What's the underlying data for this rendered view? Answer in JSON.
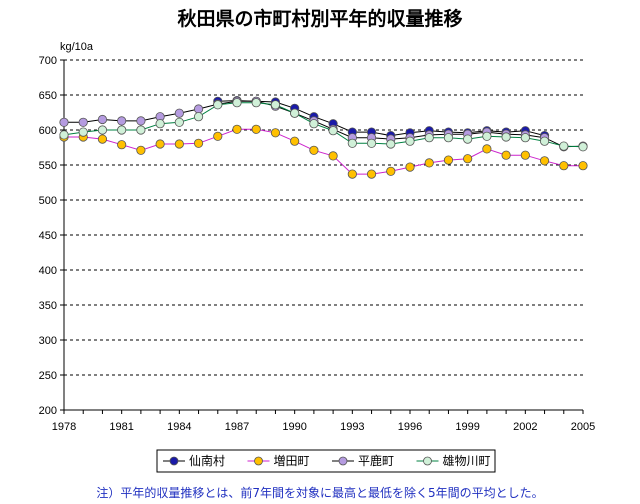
{
  "chart_data": {
    "type": "line",
    "title": "秋田県の市町村別平年的収量推移",
    "ylabel": "kg/10a",
    "xlabel": "",
    "ylim": [
      200,
      700
    ],
    "yticks": [
      200,
      250,
      300,
      350,
      400,
      450,
      500,
      550,
      600,
      650,
      700
    ],
    "xlim": [
      1978,
      2005
    ],
    "xticks": [
      1978,
      1981,
      1984,
      1987,
      1990,
      1993,
      1996,
      1999,
      2002,
      2005
    ],
    "grid": "horizontal-dashed",
    "legend_position": "bottom",
    "x": [
      1978,
      1979,
      1980,
      1981,
      1982,
      1983,
      1984,
      1985,
      1986,
      1987,
      1988,
      1989,
      1990,
      1991,
      1992,
      1993,
      1994,
      1995,
      1996,
      1997,
      1998,
      1999,
      2000,
      2001,
      2002,
      2003,
      2004,
      2005
    ],
    "series": [
      {
        "name": "仙南村",
        "line_color": "#000000",
        "marker_color": "#1a1aa8",
        "values": [
          null,
          null,
          null,
          null,
          null,
          null,
          null,
          null,
          641,
          642,
          641,
          640,
          631,
          619,
          609,
          597,
          597,
          592,
          596,
          599,
          597,
          596,
          599,
          597,
          599,
          592,
          null,
          null
        ]
      },
      {
        "name": "増田町",
        "line_color": "#cc22cc",
        "marker_color": "#ffc000",
        "values": [
          590,
          590,
          587,
          579,
          571,
          580,
          580,
          581,
          591,
          601,
          601,
          596,
          584,
          571,
          563,
          537,
          537,
          541,
          547,
          553,
          557,
          559,
          573,
          564,
          564,
          556,
          549,
          549
        ]
      },
      {
        "name": "平鹿町",
        "line_color": "#000000",
        "marker_color": "#b59be0",
        "values": [
          611,
          611,
          615,
          613,
          613,
          619,
          624,
          630,
          637,
          641,
          641,
          634,
          624,
          613,
          601,
          589,
          589,
          587,
          589,
          593,
          594,
          594,
          597,
          594,
          593,
          589,
          576,
          577
        ]
      },
      {
        "name": "雄物川町",
        "line_color": "#008040",
        "marker_color": "#d0f0d8",
        "values": [
          593,
          597,
          600,
          600,
          600,
          609,
          611,
          619,
          636,
          639,
          639,
          636,
          624,
          609,
          599,
          581,
          581,
          580,
          584,
          589,
          589,
          587,
          591,
          590,
          589,
          584,
          577,
          576
        ]
      }
    ]
  },
  "note": "注）平年的収量推移とは、前7年間を対象に最高と最低を除く5年間の平均とした。"
}
